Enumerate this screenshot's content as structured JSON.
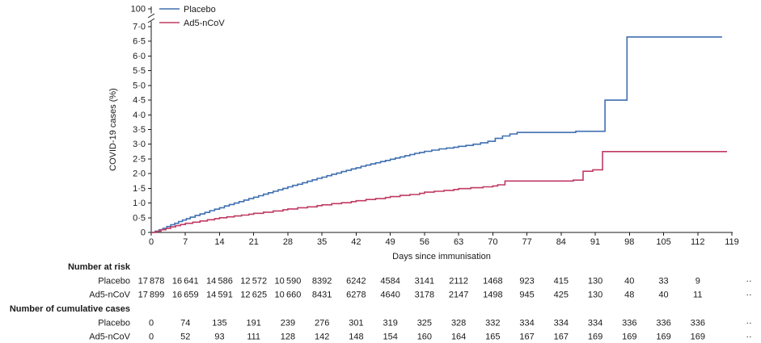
{
  "text_color": "#1a1a1a",
  "chart_data": {
    "type": "line",
    "line_style": "step-after",
    "title": "",
    "xlabel": "Days since immunisation",
    "ylabel": "COVID-19 cases (%)",
    "xlim": [
      0,
      119
    ],
    "ylim": [
      0,
      7
    ],
    "y_axis_break_label": "100",
    "x_ticks": [
      0,
      7,
      14,
      21,
      28,
      35,
      42,
      49,
      56,
      63,
      70,
      77,
      84,
      91,
      98,
      105,
      112,
      119
    ],
    "y_ticks": [
      0,
      0.5,
      1,
      1.5,
      2,
      2.5,
      3,
      3.5,
      4,
      4.5,
      5,
      5.5,
      6,
      6.5,
      7
    ],
    "y_tick_labels": [
      "0",
      "0·5",
      "1·0",
      "1·5",
      "2·0",
      "2·5",
      "3·0",
      "3·5",
      "4·0",
      "4·5",
      "5·0",
      "5·5",
      "6·0",
      "6·5",
      "7·0"
    ],
    "legend": [
      {
        "label": "Placebo",
        "color": "#3e6fb0"
      },
      {
        "label": "Ad5-nCoV",
        "color": "#c03a63"
      }
    ],
    "series": [
      {
        "name": "Placebo",
        "color": "#3e6fb0",
        "points": [
          [
            0,
            0
          ],
          [
            0.8,
            0.04
          ],
          [
            1.6,
            0.09
          ],
          [
            2.4,
            0.14
          ],
          [
            3.2,
            0.2
          ],
          [
            4,
            0.26
          ],
          [
            4.8,
            0.31
          ],
          [
            5.6,
            0.37
          ],
          [
            6.4,
            0.42
          ],
          [
            7.2,
            0.47
          ],
          [
            8,
            0.52
          ],
          [
            9,
            0.58
          ],
          [
            10,
            0.63
          ],
          [
            11,
            0.68
          ],
          [
            12,
            0.74
          ],
          [
            13,
            0.79
          ],
          [
            14,
            0.84
          ],
          [
            15,
            0.9
          ],
          [
            16,
            0.95
          ],
          [
            17,
            1
          ],
          [
            18,
            1.05
          ],
          [
            19,
            1.1
          ],
          [
            20,
            1.15
          ],
          [
            21,
            1.2
          ],
          [
            22,
            1.25
          ],
          [
            23,
            1.3
          ],
          [
            24,
            1.35
          ],
          [
            25,
            1.4
          ],
          [
            26,
            1.45
          ],
          [
            27,
            1.5
          ],
          [
            28,
            1.55
          ],
          [
            29,
            1.6
          ],
          [
            30,
            1.64
          ],
          [
            31,
            1.69
          ],
          [
            32,
            1.74
          ],
          [
            33,
            1.79
          ],
          [
            34,
            1.84
          ],
          [
            35,
            1.88
          ],
          [
            36,
            1.93
          ],
          [
            37,
            1.98
          ],
          [
            38,
            2.02
          ],
          [
            39,
            2.07
          ],
          [
            40,
            2.11
          ],
          [
            41,
            2.16
          ],
          [
            42,
            2.2
          ],
          [
            43,
            2.25
          ],
          [
            44,
            2.29
          ],
          [
            45,
            2.33
          ],
          [
            46,
            2.37
          ],
          [
            47,
            2.41
          ],
          [
            48,
            2.45
          ],
          [
            49,
            2.49
          ],
          [
            50,
            2.53
          ],
          [
            51,
            2.57
          ],
          [
            52,
            2.61
          ],
          [
            53,
            2.65
          ],
          [
            54,
            2.69
          ],
          [
            55,
            2.72
          ],
          [
            56,
            2.76
          ],
          [
            57.5,
            2.8
          ],
          [
            59,
            2.84
          ],
          [
            60.5,
            2.87
          ],
          [
            62,
            2.9
          ],
          [
            63,
            2.93
          ],
          [
            64.5,
            2.96
          ],
          [
            66,
            3
          ],
          [
            67.5,
            3.05
          ],
          [
            69,
            3.1
          ],
          [
            70.5,
            3.2
          ],
          [
            72,
            3.28
          ],
          [
            73.5,
            3.35
          ],
          [
            75,
            3.4
          ],
          [
            87,
            3.44
          ],
          [
            93,
            4.5
          ],
          [
            97.5,
            6.65
          ],
          [
            117,
            6.65
          ]
        ]
      },
      {
        "name": "Ad5-nCoV",
        "color": "#c03a63",
        "points": [
          [
            0,
            0
          ],
          [
            1,
            0.04
          ],
          [
            2,
            0.09
          ],
          [
            3,
            0.14
          ],
          [
            4,
            0.19
          ],
          [
            5,
            0.23
          ],
          [
            6,
            0.27
          ],
          [
            7,
            0.31
          ],
          [
            8.5,
            0.35
          ],
          [
            10,
            0.39
          ],
          [
            11.5,
            0.43
          ],
          [
            13,
            0.47
          ],
          [
            14,
            0.5
          ],
          [
            15.5,
            0.53
          ],
          [
            17,
            0.56
          ],
          [
            18.5,
            0.59
          ],
          [
            20,
            0.62
          ],
          [
            21,
            0.65
          ],
          [
            23,
            0.69
          ],
          [
            25,
            0.73
          ],
          [
            27,
            0.77
          ],
          [
            28,
            0.8
          ],
          [
            30,
            0.84
          ],
          [
            32,
            0.87
          ],
          [
            34,
            0.91
          ],
          [
            35,
            0.94
          ],
          [
            37,
            0.98
          ],
          [
            39,
            1.01
          ],
          [
            41,
            1.05
          ],
          [
            42,
            1.08
          ],
          [
            44,
            1.12
          ],
          [
            46,
            1.15
          ],
          [
            48,
            1.19
          ],
          [
            49,
            1.22
          ],
          [
            51,
            1.26
          ],
          [
            53,
            1.29
          ],
          [
            55,
            1.33
          ],
          [
            56,
            1.37
          ],
          [
            58,
            1.4
          ],
          [
            60,
            1.43
          ],
          [
            62,
            1.46
          ],
          [
            63,
            1.49
          ],
          [
            65.5,
            1.52
          ],
          [
            68,
            1.55
          ],
          [
            70,
            1.58
          ],
          [
            71,
            1.62
          ],
          [
            72.5,
            1.75
          ],
          [
            86.5,
            1.78
          ],
          [
            88.5,
            2.08
          ],
          [
            90.5,
            2.13
          ],
          [
            92.5,
            2.75
          ],
          [
            118,
            2.75
          ]
        ]
      }
    ]
  },
  "risk_table": {
    "sections": [
      {
        "title": "Number at risk",
        "rows": [
          {
            "label": "Placebo",
            "values": [
              "17 878",
              "16 641",
              "14 586",
              "12 572",
              "10 590",
              "8392",
              "6242",
              "4584",
              "3141",
              "2112",
              "1468",
              "923",
              "415",
              "130",
              "40",
              "33",
              "9",
              "··"
            ]
          },
          {
            "label": "Ad5-nCoV",
            "values": [
              "17 899",
              "16 659",
              "14 591",
              "12 625",
              "10 660",
              "8431",
              "6278",
              "4640",
              "3178",
              "2147",
              "1498",
              "945",
              "425",
              "130",
              "48",
              "40",
              "11",
              "··"
            ]
          }
        ]
      },
      {
        "title": "Number of cumulative cases",
        "rows": [
          {
            "label": "Placebo",
            "values": [
              "0",
              "74",
              "135",
              "191",
              "239",
              "276",
              "301",
              "319",
              "325",
              "328",
              "332",
              "334",
              "334",
              "334",
              "336",
              "336",
              "336",
              "··"
            ]
          },
          {
            "label": "Ad5-nCoV",
            "values": [
              "0",
              "52",
              "93",
              "111",
              "128",
              "142",
              "148",
              "154",
              "160",
              "164",
              "165",
              "167",
              "167",
              "169",
              "169",
              "169",
              "169",
              "··"
            ]
          }
        ]
      }
    ]
  }
}
